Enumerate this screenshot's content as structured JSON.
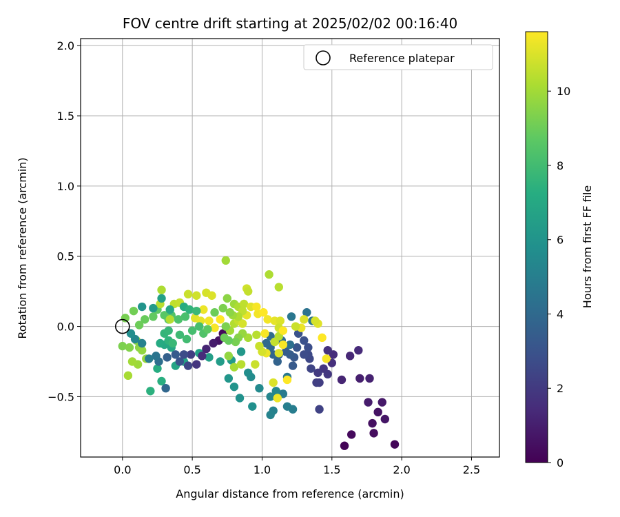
{
  "chart_data": {
    "type": "scatter",
    "title": "FOV centre drift starting at 2025/02/02 00:16:40",
    "xlabel": "Angular distance from reference (arcmin)",
    "ylabel": "Rotation from reference (arcmin)",
    "xlim": [
      -0.3,
      2.7
    ],
    "ylim": [
      -0.93,
      2.05
    ],
    "x_ticks": [
      0.0,
      0.5,
      1.0,
      1.5,
      2.0,
      2.5
    ],
    "x_tick_labels": [
      "0.0",
      "0.5",
      "1.0",
      "1.5",
      "2.0",
      "2.5"
    ],
    "y_ticks": [
      -0.5,
      0.0,
      0.5,
      1.0,
      1.5,
      2.0
    ],
    "y_tick_labels": [
      "−0.5",
      "0.0",
      "0.5",
      "1.0",
      "1.5",
      "2.0"
    ],
    "grid": true,
    "legend": {
      "placement": "top-right",
      "entries": [
        "Reference platepar"
      ]
    },
    "reference_point": {
      "x": 0.0,
      "y": 0.0,
      "label": "Reference platepar"
    },
    "colorbar": {
      "label": "Hours from first FF file",
      "range": [
        0,
        11.6
      ],
      "ticks": [
        0,
        2,
        4,
        6,
        8,
        10
      ],
      "tick_labels": [
        "0",
        "2",
        "4",
        "6",
        "8",
        "10"
      ],
      "colormap": "viridis"
    },
    "colormap_stops": [
      "#440154",
      "#472c7a",
      "#3b518b",
      "#2c718e",
      "#21908d",
      "#27ad81",
      "#5cc863",
      "#aadc32",
      "#fde725"
    ],
    "points": [
      [
        1.59,
        -0.85,
        0.1
      ],
      [
        1.95,
        -0.84,
        0.2
      ],
      [
        1.64,
        -0.77,
        0.3
      ],
      [
        1.8,
        -0.76,
        0.4
      ],
      [
        1.79,
        -0.69,
        0.5
      ],
      [
        1.83,
        -0.61,
        0.6
      ],
      [
        1.88,
        -0.66,
        0.7
      ],
      [
        1.86,
        -0.54,
        0.8
      ],
      [
        1.76,
        -0.54,
        0.9
      ],
      [
        1.7,
        -0.37,
        1.0
      ],
      [
        1.77,
        -0.37,
        1.1
      ],
      [
        1.57,
        -0.38,
        1.2
      ],
      [
        1.63,
        -0.21,
        1.3
      ],
      [
        1.69,
        -0.17,
        1.4
      ],
      [
        1.51,
        -0.2,
        1.5
      ],
      [
        1.5,
        -0.26,
        1.6
      ],
      [
        1.47,
        -0.17,
        1.7
      ],
      [
        1.44,
        -0.3,
        1.8
      ],
      [
        1.47,
        -0.34,
        1.9
      ],
      [
        1.4,
        -0.33,
        2.0
      ],
      [
        1.41,
        -0.4,
        2.1
      ],
      [
        1.39,
        -0.4,
        2.2
      ],
      [
        1.41,
        -0.59,
        2.3
      ],
      [
        1.35,
        -0.3,
        2.4
      ],
      [
        1.34,
        -0.23,
        2.5
      ],
      [
        1.33,
        -0.2,
        2.6
      ],
      [
        1.3,
        -0.2,
        2.7
      ],
      [
        1.33,
        -0.15,
        2.8
      ],
      [
        1.3,
        -0.1,
        2.9
      ],
      [
        1.26,
        -0.05,
        3.0
      ],
      [
        1.25,
        -0.15,
        3.1
      ],
      [
        1.23,
        -0.22,
        3.2
      ],
      [
        1.22,
        -0.28,
        3.3
      ],
      [
        1.2,
        -0.2,
        3.4
      ],
      [
        1.17,
        -0.18,
        3.5
      ],
      [
        1.12,
        -0.2,
        3.6
      ],
      [
        1.11,
        -0.25,
        3.7
      ],
      [
        1.08,
        -0.2,
        3.8
      ],
      [
        1.06,
        -0.15,
        3.9
      ],
      [
        1.03,
        -0.12,
        4.0
      ],
      [
        1.06,
        -0.07,
        4.1
      ],
      [
        1.14,
        -0.1,
        4.2
      ],
      [
        1.2,
        -0.13,
        4.3
      ],
      [
        1.32,
        0.1,
        4.4
      ],
      [
        1.36,
        0.04,
        4.5
      ],
      [
        1.21,
        0.07,
        4.6
      ],
      [
        1.18,
        -0.36,
        4.7
      ],
      [
        1.15,
        -0.48,
        4.8
      ],
      [
        1.22,
        -0.59,
        4.9
      ],
      [
        1.18,
        -0.57,
        5.0
      ],
      [
        1.08,
        -0.6,
        5.1
      ],
      [
        1.06,
        -0.63,
        5.2
      ],
      [
        1.06,
        -0.5,
        5.3
      ],
      [
        1.1,
        -0.46,
        5.4
      ],
      [
        0.98,
        -0.44,
        5.5
      ],
      [
        0.92,
        -0.36,
        5.6
      ],
      [
        0.9,
        -0.33,
        5.7
      ],
      [
        0.93,
        -0.57,
        5.8
      ],
      [
        0.84,
        -0.51,
        5.9
      ],
      [
        0.8,
        -0.43,
        6.0
      ],
      [
        0.76,
        -0.37,
        6.1
      ],
      [
        0.85,
        -0.18,
        6.2
      ],
      [
        0.78,
        -0.24,
        6.3
      ],
      [
        0.7,
        -0.25,
        6.4
      ],
      [
        0.62,
        -0.22,
        6.5
      ],
      [
        0.55,
        -0.19,
        6.6
      ],
      [
        0.44,
        -0.25,
        6.7
      ],
      [
        0.38,
        -0.28,
        6.8
      ],
      [
        0.35,
        -0.15,
        6.9
      ],
      [
        0.3,
        -0.13,
        7.0
      ],
      [
        0.27,
        -0.12,
        7.1
      ],
      [
        0.25,
        -0.3,
        7.2
      ],
      [
        0.28,
        -0.39,
        7.3
      ],
      [
        0.2,
        -0.46,
        7.4
      ],
      [
        0.33,
        -0.1,
        7.5
      ],
      [
        0.3,
        -0.05,
        7.6
      ],
      [
        0.33,
        -0.03,
        7.7
      ],
      [
        0.36,
        -0.12,
        7.8
      ],
      [
        0.41,
        -0.06,
        7.9
      ],
      [
        0.46,
        -0.09,
        8.0
      ],
      [
        0.5,
        -0.03,
        8.1
      ],
      [
        0.45,
        0.07,
        8.2
      ],
      [
        0.4,
        0.05,
        8.3
      ],
      [
        0.35,
        0.08,
        8.4
      ],
      [
        0.33,
        0.05,
        8.5
      ],
      [
        0.3,
        0.08,
        8.6
      ],
      [
        0.25,
        0.12,
        8.7
      ],
      [
        0.22,
        0.07,
        8.8
      ],
      [
        0.16,
        0.05,
        8.9
      ],
      [
        0.12,
        0.01,
        9.0
      ],
      [
        0.08,
        0.11,
        9.1
      ],
      [
        0.02,
        0.06,
        9.2
      ],
      [
        0.0,
        -0.14,
        9.3
      ],
      [
        0.05,
        -0.15,
        9.4
      ],
      [
        0.1,
        -0.1,
        9.5
      ],
      [
        0.12,
        -0.15,
        9.6
      ],
      [
        0.14,
        -0.17,
        9.7
      ],
      [
        0.17,
        -0.23,
        9.8
      ],
      [
        0.11,
        -0.27,
        9.9
      ],
      [
        0.07,
        -0.25,
        10.0
      ],
      [
        0.04,
        -0.35,
        10.1
      ],
      [
        0.28,
        0.26,
        10.2
      ],
      [
        0.34,
        0.05,
        10.3
      ],
      [
        0.27,
        0.16,
        10.4
      ],
      [
        0.37,
        0.16,
        10.5
      ],
      [
        0.41,
        0.17,
        10.6
      ],
      [
        0.47,
        0.23,
        10.7
      ],
      [
        0.53,
        0.22,
        10.8
      ],
      [
        0.6,
        0.24,
        10.9
      ],
      [
        0.64,
        0.22,
        11.0
      ],
      [
        0.52,
        0.06,
        11.1
      ],
      [
        0.56,
        0.04,
        11.2
      ],
      [
        0.58,
        0.12,
        11.3
      ],
      [
        0.62,
        0.04,
        11.4
      ],
      [
        0.66,
        -0.01,
        11.5
      ],
      [
        0.7,
        0.05,
        11.6
      ],
      [
        0.72,
        -0.05,
        0.3
      ],
      [
        0.69,
        -0.1,
        0.6
      ],
      [
        0.65,
        -0.12,
        0.9
      ],
      [
        0.6,
        -0.16,
        1.2
      ],
      [
        0.57,
        -0.21,
        1.5
      ],
      [
        0.53,
        -0.27,
        1.8
      ],
      [
        0.49,
        -0.2,
        2.1
      ],
      [
        0.47,
        -0.28,
        2.4
      ],
      [
        0.44,
        -0.2,
        2.7
      ],
      [
        0.41,
        -0.25,
        3.0
      ],
      [
        0.38,
        -0.2,
        3.3
      ],
      [
        0.32,
        -0.22,
        3.6
      ],
      [
        0.31,
        -0.44,
        3.9
      ],
      [
        0.26,
        -0.25,
        4.2
      ],
      [
        0.24,
        -0.21,
        4.5
      ],
      [
        0.19,
        -0.23,
        4.8
      ],
      [
        0.14,
        -0.12,
        5.1
      ],
      [
        0.09,
        -0.09,
        5.4
      ],
      [
        0.06,
        -0.05,
        5.7
      ],
      [
        0.14,
        0.14,
        6.0
      ],
      [
        0.22,
        0.13,
        6.3
      ],
      [
        0.28,
        0.2,
        6.6
      ],
      [
        0.34,
        0.12,
        6.9
      ],
      [
        0.44,
        0.14,
        7.2
      ],
      [
        0.48,
        0.12,
        7.5
      ],
      [
        0.53,
        0.11,
        7.8
      ],
      [
        0.55,
        0.0,
        8.1
      ],
      [
        0.58,
        -0.05,
        8.4
      ],
      [
        0.61,
        -0.02,
        8.7
      ],
      [
        0.66,
        0.1,
        9.0
      ],
      [
        0.72,
        0.13,
        9.3
      ],
      [
        0.75,
        0.2,
        9.6
      ],
      [
        0.8,
        0.16,
        9.9
      ],
      [
        0.83,
        0.14,
        10.2
      ],
      [
        0.87,
        0.16,
        10.5
      ],
      [
        0.89,
        0.27,
        10.8
      ],
      [
        0.92,
        0.14,
        11.1
      ],
      [
        0.97,
        0.09,
        11.4
      ],
      [
        0.74,
        0.47,
        10.0
      ],
      [
        1.05,
        0.37,
        10.2
      ],
      [
        1.12,
        0.28,
        10.4
      ],
      [
        0.9,
        0.25,
        10.6
      ],
      [
        1.01,
        0.1,
        11.6
      ],
      [
        1.04,
        0.05,
        11.4
      ],
      [
        1.09,
        0.04,
        11.2
      ],
      [
        1.13,
        0.04,
        11.0
      ],
      [
        1.12,
        -0.01,
        10.8
      ],
      [
        1.09,
        -0.11,
        10.6
      ],
      [
        1.12,
        -0.07,
        10.4
      ],
      [
        1.15,
        -0.13,
        11.5
      ],
      [
        1.12,
        -0.19,
        11.0
      ],
      [
        1.03,
        -0.19,
        11.3
      ],
      [
        1.0,
        -0.18,
        10.9
      ],
      [
        0.98,
        -0.14,
        10.7
      ],
      [
        1.02,
        -0.05,
        11.5
      ],
      [
        0.96,
        -0.06,
        10.4
      ],
      [
        0.9,
        -0.08,
        10.1
      ],
      [
        0.86,
        -0.05,
        9.8
      ],
      [
        0.83,
        -0.08,
        9.5
      ],
      [
        0.81,
        -0.11,
        9.2
      ],
      [
        0.76,
        -0.1,
        8.9
      ],
      [
        0.77,
        -0.03,
        10.0
      ],
      [
        0.8,
        0.02,
        10.3
      ],
      [
        0.83,
        0.04,
        10.6
      ],
      [
        0.86,
        0.02,
        10.9
      ],
      [
        0.89,
        0.08,
        11.2
      ],
      [
        0.86,
        0.11,
        10.5
      ],
      [
        0.83,
        0.07,
        10.2
      ],
      [
        0.79,
        0.08,
        9.9
      ],
      [
        0.77,
        0.1,
        9.6
      ],
      [
        0.74,
        0.0,
        9.3
      ],
      [
        0.73,
        -0.08,
        9.0
      ],
      [
        0.76,
        -0.21,
        9.7
      ],
      [
        0.8,
        -0.29,
        10.1
      ],
      [
        0.85,
        -0.27,
        10.4
      ],
      [
        0.95,
        -0.27,
        10.7
      ],
      [
        1.08,
        -0.4,
        11.0
      ],
      [
        1.11,
        -0.51,
        11.3
      ],
      [
        1.18,
        -0.38,
        11.6
      ],
      [
        1.43,
        -0.08,
        11.6
      ],
      [
        1.46,
        -0.23,
        11.5
      ],
      [
        1.4,
        0.02,
        11.1
      ],
      [
        1.38,
        0.04,
        10.9
      ],
      [
        1.28,
        -0.01,
        11.3
      ],
      [
        1.3,
        0.05,
        11.0
      ],
      [
        1.24,
        0.0,
        10.7
      ],
      [
        0.96,
        0.14,
        11.5
      ],
      [
        1.15,
        -0.03,
        11.6
      ]
    ]
  }
}
